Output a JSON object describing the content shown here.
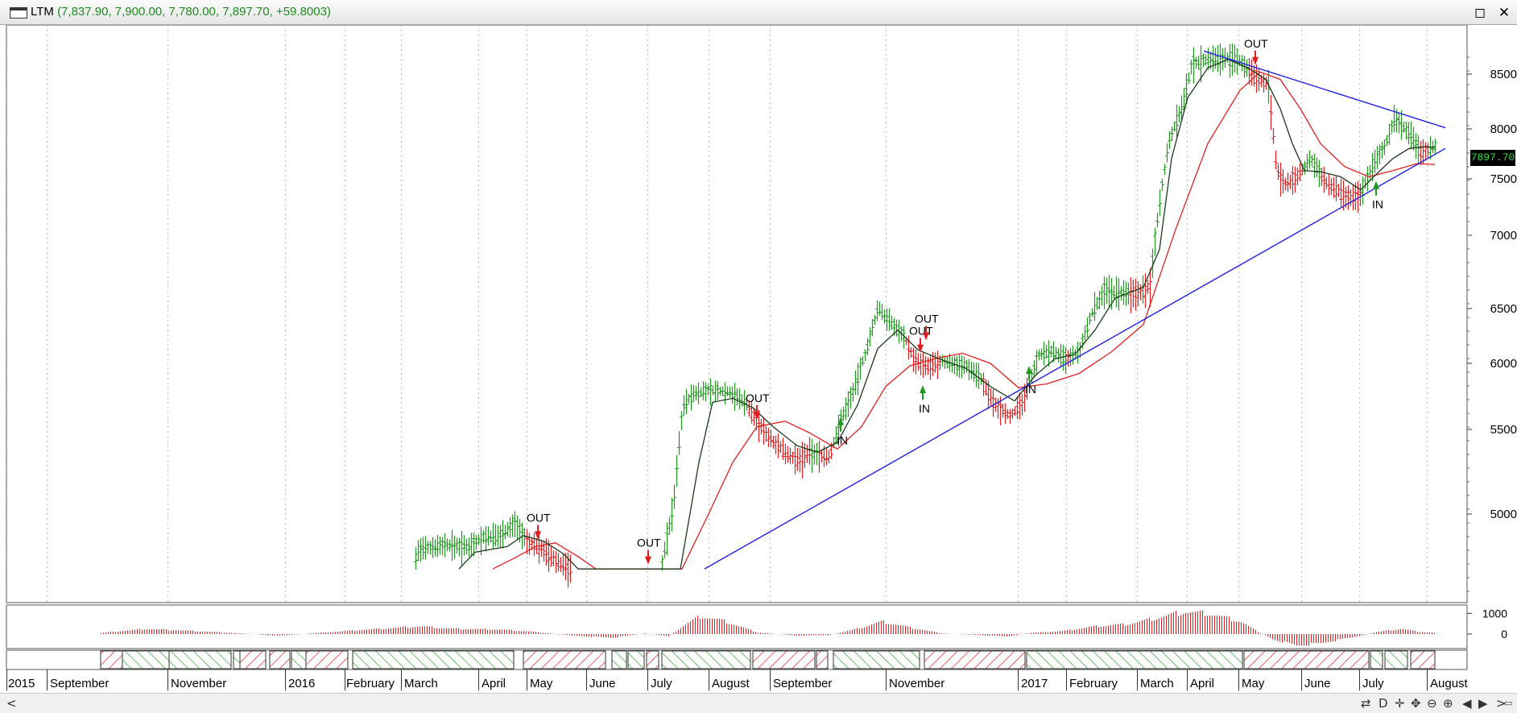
{
  "window": {
    "symbol": "LTM",
    "ohlc_text": "(7,837.90, 7,900.00, 7,780.00, 7,897.70, +59.8003)",
    "maximize_glyph": "◻",
    "close_glyph": "✕"
  },
  "last_price_label": "7897.70",
  "status_bar": {
    "left_arrow": "<",
    "right_arrow": ">",
    "tools": [
      "⇄",
      "D",
      "✛",
      "✥",
      "⊖",
      "⊕",
      "◀",
      "▶",
      "▭"
    ]
  },
  "colors": {
    "up": "#1f9a1f",
    "down": "#e02020",
    "ma_fast": "#1a3a1a",
    "ma_slow": "#e02020",
    "trendline": "#2020e0",
    "grid": "#b8b8b8",
    "signal_in": "#1f9a1f",
    "signal_out": "#e02020"
  },
  "chart_data": {
    "type": "bar",
    "title": "LTM",
    "y_ticks": [
      5000,
      5500,
      6000,
      6500,
      7000,
      7500,
      8000,
      8500
    ],
    "ylim": [
      4700,
      8800
    ],
    "last_close": 7897.7,
    "x_month_labels": [
      "2015",
      "September",
      "November",
      "2016",
      "February",
      "March",
      "April",
      "May",
      "June",
      "July",
      "August",
      "September",
      "November",
      "2017",
      "February",
      "March",
      "April",
      "May",
      "June",
      "July",
      "August"
    ],
    "price_path_anchors": [
      {
        "d": 513,
        "p": 4700
      },
      {
        "d": 518,
        "p": 4800
      },
      {
        "d": 550,
        "p": 4830
      },
      {
        "d": 580,
        "p": 4820
      },
      {
        "d": 600,
        "p": 4870
      },
      {
        "d": 620,
        "p": 4880
      },
      {
        "d": 640,
        "p": 4950
      },
      {
        "d": 655,
        "p": 4840
      },
      {
        "d": 670,
        "p": 4820
      },
      {
        "d": 690,
        "p": 4740
      },
      {
        "d": 710,
        "p": 4700
      },
      {
        "d": 760,
        "p": 4680
      },
      {
        "d": 820,
        "p": 4690
      },
      {
        "d": 836,
        "p": 5050
      },
      {
        "d": 848,
        "p": 5680
      },
      {
        "d": 862,
        "p": 5770
      },
      {
        "d": 880,
        "p": 5790
      },
      {
        "d": 905,
        "p": 5780
      },
      {
        "d": 925,
        "p": 5700
      },
      {
        "d": 940,
        "p": 5560
      },
      {
        "d": 955,
        "p": 5450
      },
      {
        "d": 975,
        "p": 5360
      },
      {
        "d": 990,
        "p": 5310
      },
      {
        "d": 1005,
        "p": 5360
      },
      {
        "d": 1030,
        "p": 5330
      },
      {
        "d": 1045,
        "p": 5590
      },
      {
        "d": 1060,
        "p": 5800
      },
      {
        "d": 1075,
        "p": 6100
      },
      {
        "d": 1090,
        "p": 6500
      },
      {
        "d": 1105,
        "p": 6380
      },
      {
        "d": 1122,
        "p": 6250
      },
      {
        "d": 1135,
        "p": 6030
      },
      {
        "d": 1150,
        "p": 5980
      },
      {
        "d": 1170,
        "p": 6020
      },
      {
        "d": 1200,
        "p": 5980
      },
      {
        "d": 1215,
        "p": 5910
      },
      {
        "d": 1235,
        "p": 5680
      },
      {
        "d": 1255,
        "p": 5600
      },
      {
        "d": 1270,
        "p": 5700
      },
      {
        "d": 1290,
        "p": 6080
      },
      {
        "d": 1305,
        "p": 6110
      },
      {
        "d": 1325,
        "p": 6040
      },
      {
        "d": 1340,
        "p": 6100
      },
      {
        "d": 1355,
        "p": 6450
      },
      {
        "d": 1370,
        "p": 6620
      },
      {
        "d": 1390,
        "p": 6600
      },
      {
        "d": 1408,
        "p": 6590
      },
      {
        "d": 1428,
        "p": 6650
      },
      {
        "d": 1440,
        "p": 7300
      },
      {
        "d": 1452,
        "p": 7900
      },
      {
        "d": 1470,
        "p": 8250
      },
      {
        "d": 1480,
        "p": 8600
      },
      {
        "d": 1500,
        "p": 8640
      },
      {
        "d": 1520,
        "p": 8660
      },
      {
        "d": 1540,
        "p": 8620
      },
      {
        "d": 1560,
        "p": 8460
      },
      {
        "d": 1575,
        "p": 8400
      },
      {
        "d": 1585,
        "p": 7600
      },
      {
        "d": 1595,
        "p": 7450
      },
      {
        "d": 1610,
        "p": 7520
      },
      {
        "d": 1628,
        "p": 7700
      },
      {
        "d": 1645,
        "p": 7470
      },
      {
        "d": 1660,
        "p": 7400
      },
      {
        "d": 1675,
        "p": 7320
      },
      {
        "d": 1690,
        "p": 7370
      },
      {
        "d": 1705,
        "p": 7650
      },
      {
        "d": 1718,
        "p": 7800
      },
      {
        "d": 1732,
        "p": 8100
      },
      {
        "d": 1750,
        "p": 7950
      },
      {
        "d": 1765,
        "p": 7760
      },
      {
        "d": 1782,
        "p": 7830
      }
    ],
    "ma_fast_anchors": [
      {
        "d": 570,
        "p": 4700
      },
      {
        "d": 590,
        "p": 4790
      },
      {
        "d": 630,
        "p": 4820
      },
      {
        "d": 650,
        "p": 4880
      },
      {
        "d": 675,
        "p": 4850
      },
      {
        "d": 700,
        "p": 4780
      },
      {
        "d": 718,
        "p": 4700
      },
      {
        "d": 845,
        "p": 4700
      },
      {
        "d": 868,
        "p": 5300
      },
      {
        "d": 885,
        "p": 5700
      },
      {
        "d": 910,
        "p": 5730
      },
      {
        "d": 935,
        "p": 5660
      },
      {
        "d": 960,
        "p": 5520
      },
      {
        "d": 990,
        "p": 5400
      },
      {
        "d": 1015,
        "p": 5360
      },
      {
        "d": 1040,
        "p": 5420
      },
      {
        "d": 1065,
        "p": 5680
      },
      {
        "d": 1090,
        "p": 6130
      },
      {
        "d": 1115,
        "p": 6300
      },
      {
        "d": 1140,
        "p": 6120
      },
      {
        "d": 1170,
        "p": 6030
      },
      {
        "d": 1200,
        "p": 5960
      },
      {
        "d": 1230,
        "p": 5820
      },
      {
        "d": 1260,
        "p": 5710
      },
      {
        "d": 1285,
        "p": 5900
      },
      {
        "d": 1310,
        "p": 6040
      },
      {
        "d": 1335,
        "p": 6080
      },
      {
        "d": 1360,
        "p": 6300
      },
      {
        "d": 1385,
        "p": 6570
      },
      {
        "d": 1420,
        "p": 6640
      },
      {
        "d": 1440,
        "p": 6900
      },
      {
        "d": 1455,
        "p": 7700
      },
      {
        "d": 1475,
        "p": 8280
      },
      {
        "d": 1500,
        "p": 8560
      },
      {
        "d": 1525,
        "p": 8640
      },
      {
        "d": 1550,
        "p": 8560
      },
      {
        "d": 1572,
        "p": 8450
      },
      {
        "d": 1590,
        "p": 8180
      },
      {
        "d": 1605,
        "p": 7850
      },
      {
        "d": 1620,
        "p": 7580
      },
      {
        "d": 1640,
        "p": 7570
      },
      {
        "d": 1665,
        "p": 7520
      },
      {
        "d": 1690,
        "p": 7400
      },
      {
        "d": 1710,
        "p": 7550
      },
      {
        "d": 1730,
        "p": 7700
      },
      {
        "d": 1750,
        "p": 7800
      },
      {
        "d": 1770,
        "p": 7820
      },
      {
        "d": 1782,
        "p": 7810
      }
    ],
    "ma_slow_anchors": [
      {
        "d": 612,
        "p": 4700
      },
      {
        "d": 640,
        "p": 4760
      },
      {
        "d": 665,
        "p": 4820
      },
      {
        "d": 690,
        "p": 4840
      },
      {
        "d": 720,
        "p": 4760
      },
      {
        "d": 740,
        "p": 4700
      },
      {
        "d": 847,
        "p": 4700
      },
      {
        "d": 880,
        "p": 5000
      },
      {
        "d": 910,
        "p": 5300
      },
      {
        "d": 940,
        "p": 5520
      },
      {
        "d": 975,
        "p": 5560
      },
      {
        "d": 1005,
        "p": 5480
      },
      {
        "d": 1040,
        "p": 5380
      },
      {
        "d": 1070,
        "p": 5520
      },
      {
        "d": 1100,
        "p": 5820
      },
      {
        "d": 1130,
        "p": 5980
      },
      {
        "d": 1160,
        "p": 6040
      },
      {
        "d": 1195,
        "p": 6090
      },
      {
        "d": 1230,
        "p": 6000
      },
      {
        "d": 1265,
        "p": 5810
      },
      {
        "d": 1300,
        "p": 5840
      },
      {
        "d": 1340,
        "p": 5920
      },
      {
        "d": 1380,
        "p": 6100
      },
      {
        "d": 1420,
        "p": 6350
      },
      {
        "d": 1460,
        "p": 7050
      },
      {
        "d": 1500,
        "p": 7850
      },
      {
        "d": 1540,
        "p": 8350
      },
      {
        "d": 1565,
        "p": 8520
      },
      {
        "d": 1590,
        "p": 8450
      },
      {
        "d": 1615,
        "p": 8180
      },
      {
        "d": 1640,
        "p": 7850
      },
      {
        "d": 1670,
        "p": 7620
      },
      {
        "d": 1700,
        "p": 7520
      },
      {
        "d": 1730,
        "p": 7580
      },
      {
        "d": 1760,
        "p": 7650
      },
      {
        "d": 1782,
        "p": 7640
      }
    ],
    "trendline_lower": [
      {
        "d": 875,
        "p": 4700
      },
      {
        "d": 1795,
        "p": 7800
      }
    ],
    "trendline_upper": [
      {
        "d": 1495,
        "p": 8720
      },
      {
        "d": 1795,
        "p": 8010
      }
    ],
    "signals": [
      {
        "label": "OUT",
        "d": 668,
        "p": 4850
      },
      {
        "label": "OUT",
        "d": 805,
        "p": 4715
      },
      {
        "label": "OUT",
        "d": 940,
        "p": 5560
      },
      {
        "label": "IN",
        "d": 1044,
        "p": 5590
      },
      {
        "label": "OUT",
        "d": 1143,
        "p": 6080
      },
      {
        "label": "OUT",
        "d": 1150,
        "p": 6190
      },
      {
        "label": "IN",
        "d": 1146,
        "p": 5830
      },
      {
        "label": "IN",
        "d": 1278,
        "p": 5980
      },
      {
        "label": "OUT",
        "d": 1559,
        "p": 8570
      },
      {
        "label": "IN",
        "d": 1709,
        "p": 7480
      }
    ],
    "oscillator": {
      "y_ticks": [
        1000,
        0
      ],
      "range": [
        -700,
        1400
      ],
      "anchors": [
        {
          "d": 125,
          "v": 60
        },
        {
          "d": 180,
          "v": 250
        },
        {
          "d": 240,
          "v": 150
        },
        {
          "d": 300,
          "v": 30
        },
        {
          "d": 345,
          "v": -80
        },
        {
          "d": 390,
          "v": 40
        },
        {
          "d": 440,
          "v": 180
        },
        {
          "d": 470,
          "v": 250
        },
        {
          "d": 520,
          "v": 380
        },
        {
          "d": 560,
          "v": 260
        },
        {
          "d": 620,
          "v": 220
        },
        {
          "d": 660,
          "v": 120
        },
        {
          "d": 710,
          "v": -80
        },
        {
          "d": 760,
          "v": -180
        },
        {
          "d": 800,
          "v": 30
        },
        {
          "d": 830,
          "v": -100
        },
        {
          "d": 848,
          "v": 400
        },
        {
          "d": 870,
          "v": 880
        },
        {
          "d": 900,
          "v": 620
        },
        {
          "d": 940,
          "v": 80
        },
        {
          "d": 990,
          "v": -80
        },
        {
          "d": 1030,
          "v": -50
        },
        {
          "d": 1060,
          "v": 220
        },
        {
          "d": 1095,
          "v": 600
        },
        {
          "d": 1130,
          "v": 320
        },
        {
          "d": 1170,
          "v": 30
        },
        {
          "d": 1210,
          "v": -40
        },
        {
          "d": 1250,
          "v": -120
        },
        {
          "d": 1280,
          "v": 60
        },
        {
          "d": 1320,
          "v": 150
        },
        {
          "d": 1360,
          "v": 380
        },
        {
          "d": 1400,
          "v": 480
        },
        {
          "d": 1440,
          "v": 820
        },
        {
          "d": 1470,
          "v": 1080
        },
        {
          "d": 1500,
          "v": 1000
        },
        {
          "d": 1540,
          "v": 620
        },
        {
          "d": 1560,
          "v": 150
        },
        {
          "d": 1580,
          "v": -250
        },
        {
          "d": 1610,
          "v": -560
        },
        {
          "d": 1640,
          "v": -450
        },
        {
          "d": 1680,
          "v": -150
        },
        {
          "d": 1710,
          "v": 100
        },
        {
          "d": 1740,
          "v": 260
        },
        {
          "d": 1760,
          "v": 120
        },
        {
          "d": 1782,
          "v": 60
        }
      ]
    },
    "regime_strip": [
      {
        "from": 125,
        "to": 152,
        "state": "down"
      },
      {
        "from": 152,
        "to": 210,
        "state": "up"
      },
      {
        "from": 210,
        "to": 287,
        "state": "up"
      },
      {
        "from": 290,
        "to": 298,
        "state": "up"
      },
      {
        "from": 298,
        "to": 330,
        "state": "down"
      },
      {
        "from": 335,
        "to": 360,
        "state": "down"
      },
      {
        "from": 362,
        "to": 380,
        "state": "up"
      },
      {
        "from": 380,
        "to": 432,
        "state": "down"
      },
      {
        "from": 438,
        "to": 638,
        "state": "up"
      },
      {
        "from": 650,
        "to": 752,
        "state": "down"
      },
      {
        "from": 760,
        "to": 778,
        "state": "up"
      },
      {
        "from": 780,
        "to": 800,
        "state": "up"
      },
      {
        "from": 803,
        "to": 818,
        "state": "down"
      },
      {
        "from": 822,
        "to": 932,
        "state": "up"
      },
      {
        "from": 935,
        "to": 1012,
        "state": "down"
      },
      {
        "from": 1014,
        "to": 1028,
        "state": "down"
      },
      {
        "from": 1035,
        "to": 1142,
        "state": "up"
      },
      {
        "from": 1148,
        "to": 1273,
        "state": "down"
      },
      {
        "from": 1275,
        "to": 1543,
        "state": "up"
      },
      {
        "from": 1545,
        "to": 1700,
        "state": "down"
      },
      {
        "from": 1702,
        "to": 1717,
        "state": "up"
      },
      {
        "from": 1720,
        "to": 1748,
        "state": "up"
      },
      {
        "from": 1752,
        "to": 1782,
        "state": "down"
      }
    ]
  }
}
